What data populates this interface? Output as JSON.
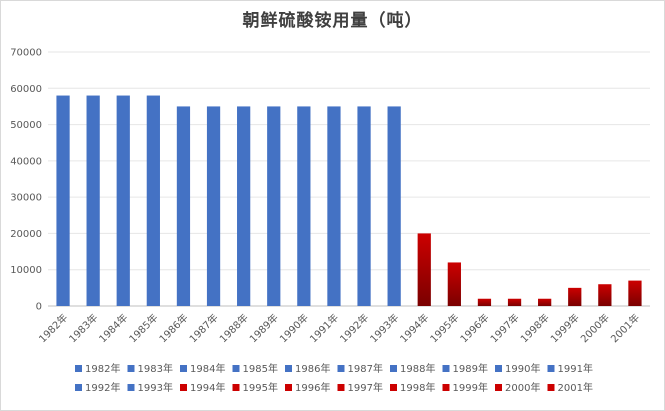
{
  "chart_data": {
    "type": "bar",
    "title": "朝鲜硫酸铵用量（吨）",
    "xlabel": "",
    "ylabel": "",
    "ylim": [
      0,
      70000
    ],
    "yticks": [
      "0",
      "10000",
      "20000",
      "30000",
      "40000",
      "50000",
      "60000",
      "70000"
    ],
    "grid": true,
    "legend_position": "bottom",
    "categories": [
      "1982年",
      "1983年",
      "1984年",
      "1985年",
      "1986年",
      "1987年",
      "1988年",
      "1989年",
      "1990年",
      "1991年",
      "1992年",
      "1993年",
      "1994年",
      "1995年",
      "1996年",
      "1997年",
      "1998年",
      "1999年",
      "2000年",
      "2001年"
    ],
    "values": [
      58000,
      58000,
      58000,
      58000,
      55000,
      55000,
      55000,
      55000,
      55000,
      55000,
      55000,
      55000,
      20000,
      12000,
      2000,
      2000,
      2000,
      5000,
      6000,
      7000
    ],
    "colors": {
      "blue": "#4472c4",
      "red": "#cc0000",
      "red_dark": "#7a0000",
      "grid": "#e6e6e6",
      "axis": "#bfbfbf"
    },
    "bar_color_keys": [
      "blue",
      "blue",
      "blue",
      "blue",
      "blue",
      "blue",
      "blue",
      "blue",
      "blue",
      "blue",
      "blue",
      "blue",
      "red",
      "red",
      "red",
      "red",
      "red",
      "red",
      "red",
      "red"
    ]
  }
}
